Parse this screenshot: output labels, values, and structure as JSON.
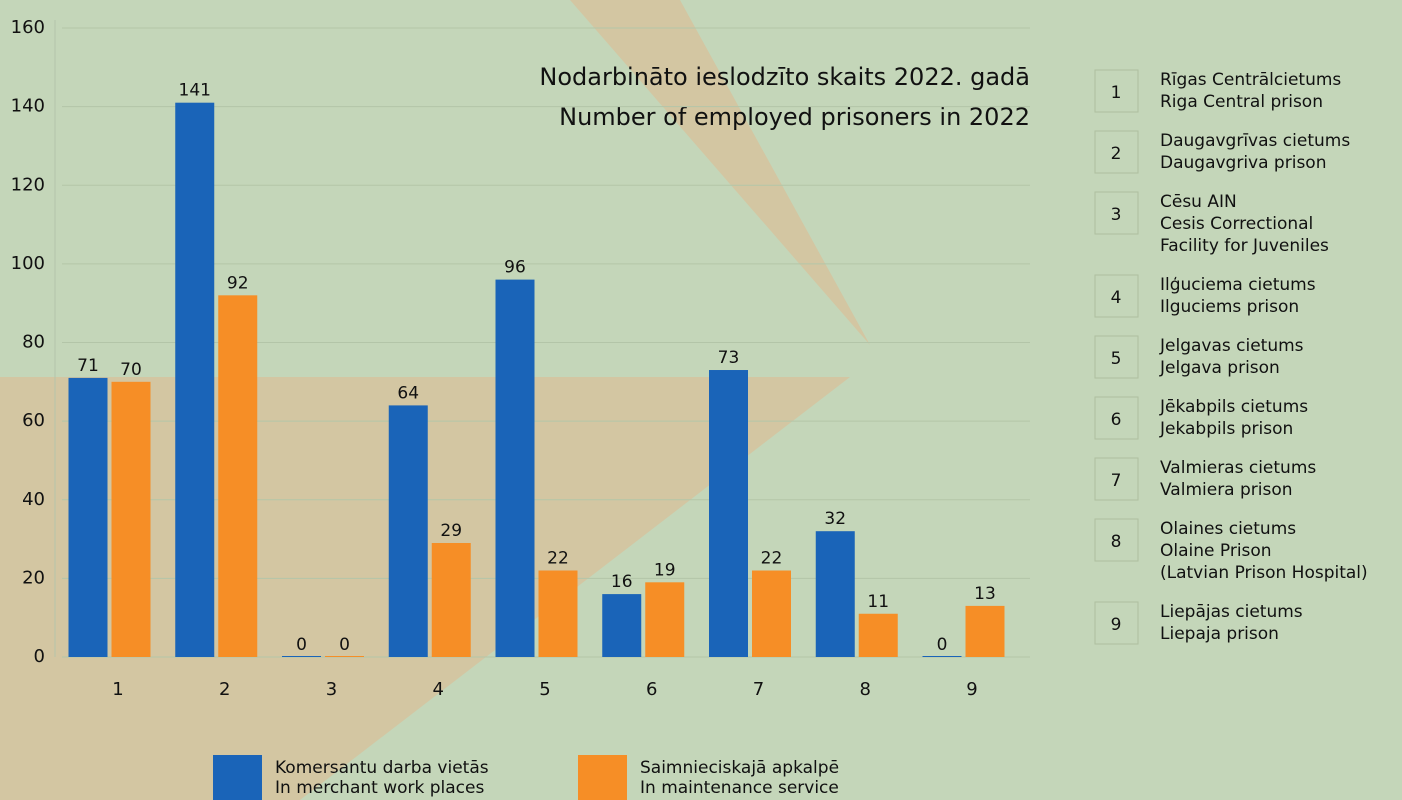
{
  "chart_data": {
    "type": "bar",
    "title": [
      "Nodarbināto ieslodzīto skaits 2022. gadā",
      "Number of employed prisoners in 2022"
    ],
    "categories": [
      "1",
      "2",
      "3",
      "4",
      "5",
      "6",
      "7",
      "8",
      "9"
    ],
    "series": [
      {
        "name": [
          "Komersantu darba vietās",
          "In merchant work places"
        ],
        "color": "#1a64b8",
        "values": [
          71,
          141,
          0,
          64,
          96,
          16,
          73,
          32,
          0
        ]
      },
      {
        "name": [
          "Saimnieciskajā apkalpē",
          "In maintenance service"
        ],
        "color": "#f68e26",
        "values": [
          70,
          92,
          0,
          29,
          22,
          19,
          22,
          11,
          13
        ]
      }
    ],
    "ylim": [
      0,
      160
    ],
    "yticks": [
      0,
      20,
      40,
      60,
      80,
      100,
      120,
      140,
      160
    ],
    "grid": true,
    "key": [
      {
        "number": "1",
        "lines": [
          "Rīgas Centrālcietums",
          "Riga Central prison"
        ]
      },
      {
        "number": "2",
        "lines": [
          "Daugavgrīvas cietums",
          "Daugavgriva prison"
        ]
      },
      {
        "number": "3",
        "lines": [
          "Cēsu AIN",
          "Cesis Correctional",
          "Facility for Juveniles"
        ]
      },
      {
        "number": "4",
        "lines": [
          "Ilģuciema cietums",
          "Ilguciems prison"
        ]
      },
      {
        "number": "5",
        "lines": [
          "Jelgavas cietums",
          "Jelgava prison"
        ]
      },
      {
        "number": "6",
        "lines": [
          "Jēkabpils cietums",
          "Jekabpils prison"
        ]
      },
      {
        "number": "7",
        "lines": [
          "Valmieras cietums",
          "Valmiera prison"
        ]
      },
      {
        "number": "8",
        "lines": [
          "Olaines cietums",
          "Olaine Prison",
          "(Latvian Prison Hospital)"
        ]
      },
      {
        "number": "9",
        "lines": [
          "Liepājas cietums",
          "Liepaja prison"
        ]
      }
    ]
  }
}
